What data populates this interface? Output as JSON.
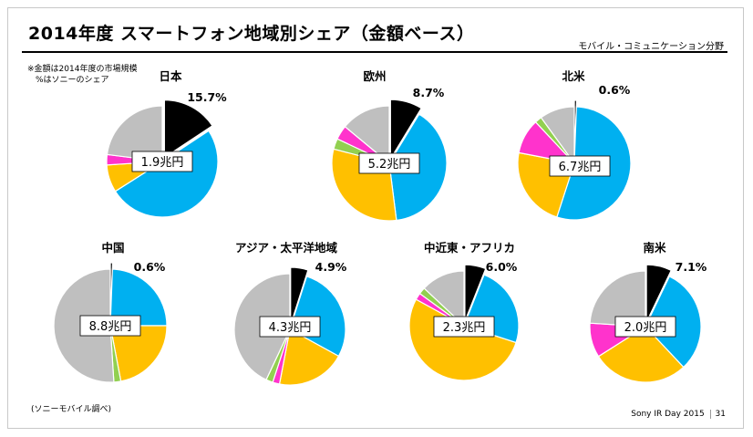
{
  "header": {
    "title": "2014年度 スマートフォン地域別シェア（金額ベース）",
    "segment": "モバイル・コミュニケーション分野"
  },
  "notes": {
    "line1": "※金額は2014年度の市場規模",
    "line2": "%はソニーのシェア"
  },
  "source": "(ソニーモバイル調べ)",
  "footer": {
    "event": "Sony IR Day 2015",
    "page": "31"
  },
  "colors": {
    "sony": "#000000",
    "blue": "#00b0f0",
    "orange": "#ffc000",
    "green": "#92d050",
    "magenta": "#ff33cc",
    "gray": "#bfbfbf"
  },
  "chart_data": [
    {
      "type": "pie",
      "region": "日本",
      "market_size": "1.9兆円",
      "share_label": "15.7%",
      "slices": [
        {
          "name": "sony",
          "value": 15.7
        },
        {
          "name": "blue",
          "value": 50.3
        },
        {
          "name": "orange",
          "value": 8
        },
        {
          "name": "magenta",
          "value": 3
        },
        {
          "name": "gray",
          "value": 23
        }
      ]
    },
    {
      "type": "pie",
      "region": "欧州",
      "market_size": "5.2兆円",
      "share_label": "8.7%",
      "slices": [
        {
          "name": "sony",
          "value": 8.7
        },
        {
          "name": "blue",
          "value": 39.3
        },
        {
          "name": "orange",
          "value": 31
        },
        {
          "name": "green",
          "value": 3
        },
        {
          "name": "magenta",
          "value": 4
        },
        {
          "name": "gray",
          "value": 14
        }
      ]
    },
    {
      "type": "pie",
      "region": "北米",
      "market_size": "6.7兆円",
      "share_label": "0.6%",
      "slices": [
        {
          "name": "sony",
          "value": 0.6
        },
        {
          "name": "blue",
          "value": 54.4
        },
        {
          "name": "orange",
          "value": 23
        },
        {
          "name": "magenta",
          "value": 10
        },
        {
          "name": "green",
          "value": 2
        },
        {
          "name": "gray",
          "value": 10
        }
      ]
    },
    {
      "type": "pie",
      "region": "中国",
      "market_size": "8.8兆円",
      "share_label": "0.6%",
      "slices": [
        {
          "name": "sony",
          "value": 0.6
        },
        {
          "name": "blue",
          "value": 24.4
        },
        {
          "name": "orange",
          "value": 22
        },
        {
          "name": "green",
          "value": 2
        },
        {
          "name": "gray",
          "value": 51
        }
      ]
    },
    {
      "type": "pie",
      "region": "アジア・太平洋地域",
      "market_size": "4.3兆円",
      "share_label": "4.9%",
      "slices": [
        {
          "name": "sony",
          "value": 4.9
        },
        {
          "name": "blue",
          "value": 28.1
        },
        {
          "name": "orange",
          "value": 20
        },
        {
          "name": "magenta",
          "value": 2
        },
        {
          "name": "green",
          "value": 2
        },
        {
          "name": "gray",
          "value": 43
        }
      ]
    },
    {
      "type": "pie",
      "region": "中近東・アフリカ",
      "market_size": "2.3兆円",
      "share_label": "6.0%",
      "slices": [
        {
          "name": "sony",
          "value": 6
        },
        {
          "name": "blue",
          "value": 24
        },
        {
          "name": "orange",
          "value": 53
        },
        {
          "name": "magenta",
          "value": 2
        },
        {
          "name": "green",
          "value": 2
        },
        {
          "name": "gray",
          "value": 13
        }
      ]
    },
    {
      "type": "pie",
      "region": "南米",
      "market_size": "2.0兆円",
      "share_label": "7.1%",
      "slices": [
        {
          "name": "sony",
          "value": 7.1
        },
        {
          "name": "blue",
          "value": 30.9
        },
        {
          "name": "orange",
          "value": 28
        },
        {
          "name": "magenta",
          "value": 10
        },
        {
          "name": "gray",
          "value": 24
        }
      ]
    }
  ]
}
